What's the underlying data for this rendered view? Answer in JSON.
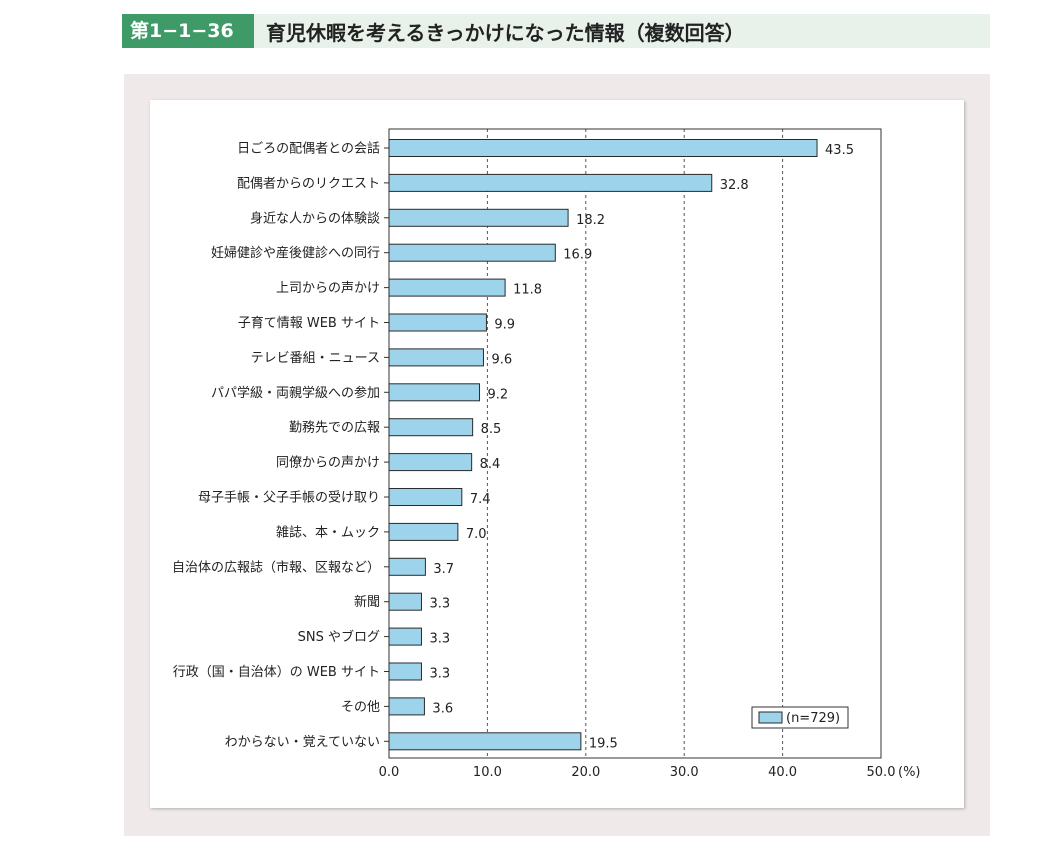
{
  "header": {
    "figure_number": "第1−1−36図",
    "title": "育児休暇を考えるきっかけになった情報（複数回答）"
  },
  "colors": {
    "bar_fill": "#9dd4ec",
    "bar_stroke": "#2a2a2a",
    "header_accent": "#3e9b68",
    "header_bg": "#e8f1ea",
    "outer_bg": "#efe9e9"
  },
  "chart_data": {
    "type": "bar",
    "orientation": "horizontal",
    "title": "",
    "xlabel": "",
    "ylabel": "",
    "unit_label": "(%)",
    "categories": [
      "日ごろの配偶者との会話",
      "配偶者からのリクエスト",
      "身近な人からの体験談",
      "妊婦健診や産後健診への同行",
      "上司からの声かけ",
      "子育て情報 WEB サイト",
      "テレビ番組・ニュース",
      "パパ学級・両親学級への参加",
      "勤務先での広報",
      "同僚からの声かけ",
      "母子手帳・父子手帳の受け取り",
      "雑誌、本・ムック",
      "自治体の広報誌（市報、区報など）",
      "新聞",
      "SNS やブログ",
      "行政（国・自治体）の WEB サイト",
      "その他",
      "わからない・覚えていない"
    ],
    "values": [
      43.5,
      32.8,
      18.2,
      16.9,
      11.8,
      9.9,
      9.6,
      9.2,
      8.5,
      8.4,
      7.4,
      7.0,
      3.7,
      3.3,
      3.3,
      3.3,
      3.6,
      19.5
    ],
    "value_labels": [
      "43.5",
      "32.8",
      "18.2",
      "16.9",
      "11.8",
      "9.9",
      "9.6",
      "9.2",
      "8.5",
      "8.4",
      "7.4",
      "7.0",
      "3.7",
      "3.3",
      "3.3",
      "3.3",
      "3.6",
      "19.5"
    ],
    "xlim": [
      0,
      50
    ],
    "xticks": [
      0,
      10,
      20,
      30,
      40,
      50
    ],
    "xtick_labels": [
      "0.0",
      "10.0",
      "20.0",
      "30.0",
      "40.0",
      "50.0"
    ],
    "grid": "vertical dashed",
    "legend": {
      "entry": "(n=729)",
      "placement": "bottom-right"
    }
  }
}
